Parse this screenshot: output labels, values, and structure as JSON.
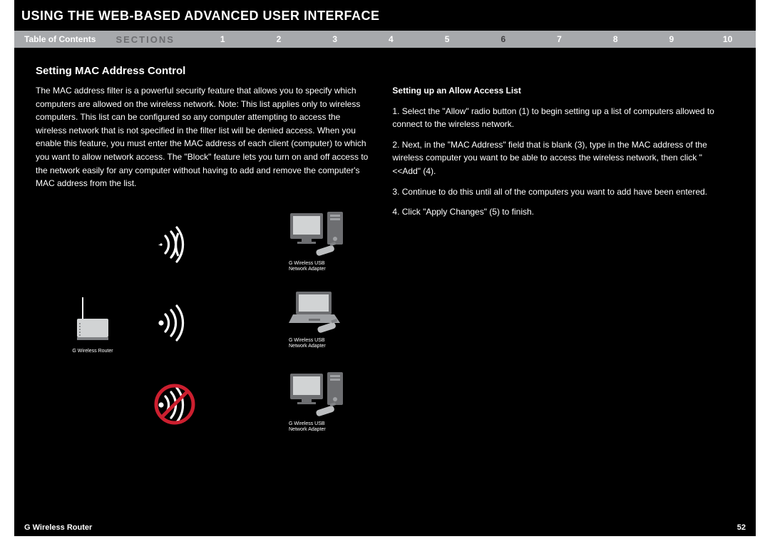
{
  "header": {
    "title": "USING THE WEB-BASED ADVANCED USER INTERFACE"
  },
  "nav": {
    "toc_label": "Table of Contents",
    "sections_label": "SECTIONS",
    "items": [
      "1",
      "2",
      "3",
      "4",
      "5",
      "6",
      "7",
      "8",
      "9",
      "10"
    ],
    "active_index": 5
  },
  "content": {
    "heading": "Setting MAC Address Control",
    "para1": "The MAC address filter is a powerful security feature that allows you to specify which computers are allowed on the wireless network. Note: This list applies only to wireless computers. This list can be configured so any computer attempting to access the wireless network that is not specified in the filter list will be denied access. When you enable this feature, you must enter the MAC address of each client (computer) to which you want to allow network access. The \"Block\" feature lets you turn on and off access to the network easily for any computer without having to add and remove the computer's MAC address from the list.",
    "para2": "Setting up an Allow Access List",
    "para3": "1. Select the \"Allow\" radio button (1) to begin setting up a list of computers allowed to connect to the wireless network.",
    "para4": "2. Next, in the \"MAC Address\" field that is blank (3), type in the MAC address of the wireless computer you want to be able to access the wireless network, then click \"<<Add\" (4).",
    "para5": "3. Continue to do this until all of the computers you want to add have been entered.",
    "para6": "4. Click \"Apply Changes\" (5) to finish."
  },
  "diagram": {
    "router_label": "G Wireless Router",
    "device_label_line1": "G Wireless USB",
    "device_label_line2": "Network Adapter",
    "colors": {
      "device_fill": "#6d6e71",
      "device_light": "#d1d3d4",
      "signal_stroke": "#ffffff",
      "blocked_stroke": "#cc1f2f",
      "router_fill": "#d1d3d4"
    }
  },
  "footer": {
    "product": "G Wireless Router",
    "page": "52"
  }
}
